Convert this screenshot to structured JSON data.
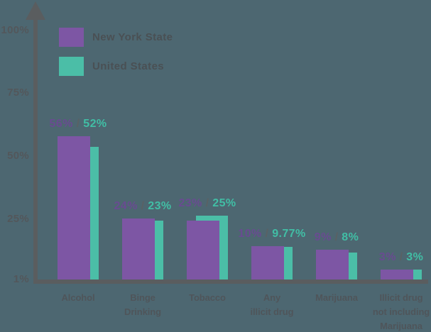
{
  "chart_data": {
    "type": "bar",
    "title": "",
    "categories": [
      "Alcohol",
      "Binge\nDrinking",
      "Tobacco",
      "Any\nillicit drug",
      "Marijuana",
      "Illicit drug\nnot including\nMarijuana"
    ],
    "series": [
      {
        "name": "New York State",
        "color": "#7d56a4",
        "values": [
          56,
          24,
          23,
          10,
          9,
          3
        ],
        "value_labels": [
          "56%",
          "24%",
          "23%",
          "10%",
          "9%",
          "3%"
        ]
      },
      {
        "name": "United States",
        "color": "#4bbea7",
        "values": [
          52,
          23,
          25,
          9.77,
          8,
          3
        ],
        "value_labels": [
          "52%",
          "23%",
          "25%",
          "9.77%",
          "8%",
          "3%"
        ]
      }
    ],
    "value_label_separator": " / ",
    "y_ticks": [
      {
        "label": "100%",
        "value": 100
      },
      {
        "label": "75%",
        "value": 75
      },
      {
        "label": "50%",
        "value": 50
      },
      {
        "label": "25%",
        "value": 25
      },
      {
        "label": "1%",
        "value": 1
      }
    ],
    "ylim": [
      1,
      100
    ],
    "grid": false,
    "legend_position": "top-left",
    "xlabel": "",
    "ylabel": ""
  },
  "legend": {
    "items": [
      {
        "label": "New York State",
        "color": "#7d56a4"
      },
      {
        "label": "United States",
        "color": "#4bbea7"
      }
    ]
  },
  "colors": {
    "background": "#4d6771",
    "axis": "#5a5d5f",
    "tick_text": "#53575b",
    "category_text": "#4f555a",
    "legend_text": "#4a5054",
    "ny_value_text": "#694b91",
    "us_value_text": "#41bea5",
    "separator_text": "#5a6164"
  }
}
